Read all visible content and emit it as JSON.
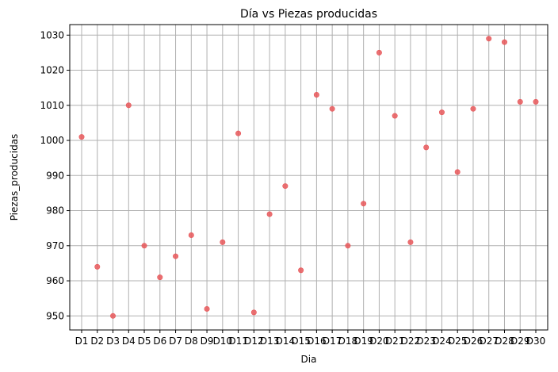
{
  "chart_data": {
    "type": "scatter",
    "title": "Día vs Piezas producidas",
    "xlabel": "Dia",
    "ylabel": "Piezas_producidas",
    "categories": [
      "D1",
      "D2",
      "D3",
      "D4",
      "D5",
      "D6",
      "D7",
      "D8",
      "D9",
      "D10",
      "D11",
      "D12",
      "D13",
      "D14",
      "D15",
      "D16",
      "D17",
      "D18",
      "D19",
      "D20",
      "D21",
      "D22",
      "D23",
      "D24",
      "D25",
      "D26",
      "D27",
      "D28",
      "D29",
      "D30"
    ],
    "values": [
      1001,
      964,
      950,
      1010,
      970,
      961,
      967,
      973,
      952,
      971,
      1002,
      951,
      979,
      987,
      963,
      1013,
      1009,
      970,
      982,
      1025,
      1007,
      971,
      998,
      1008,
      991,
      1009,
      1029,
      1028,
      1011,
      1011
    ],
    "ylim": [
      946,
      1033
    ],
    "yticks": [
      950,
      960,
      970,
      980,
      990,
      1000,
      1010,
      1020,
      1030
    ],
    "ytick_labels": [
      "950",
      "960",
      "970",
      "980",
      "990",
      "1000",
      "1010",
      "1020",
      "1030"
    ],
    "grid": true,
    "marker_color": "#e8585b"
  }
}
